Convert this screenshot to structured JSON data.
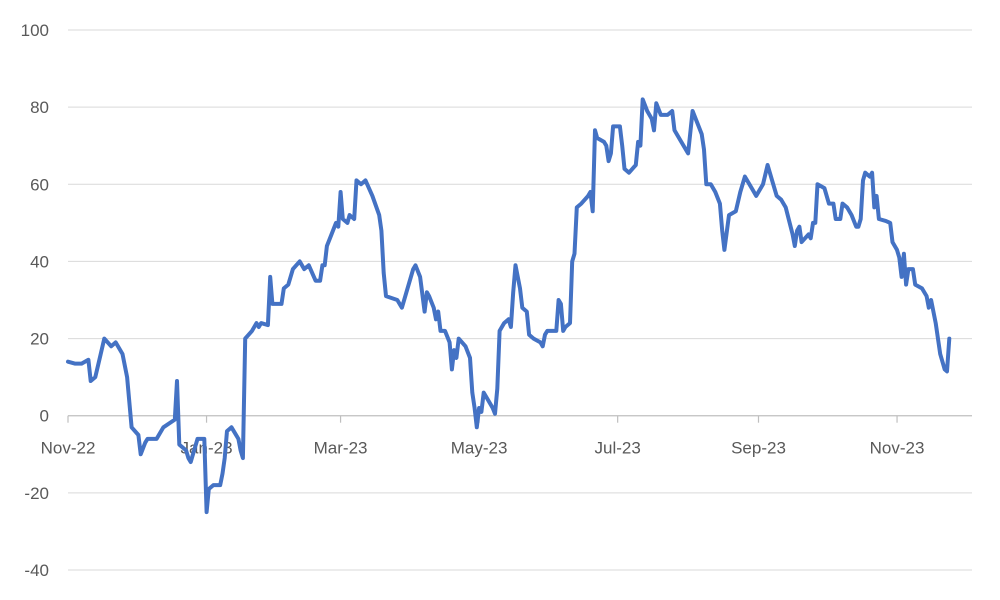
{
  "chart_data": {
    "type": "line",
    "title": "",
    "xlabel": "",
    "ylabel": "",
    "ylim": [
      -40,
      100
    ],
    "yticks": [
      -40,
      -20,
      0,
      20,
      40,
      60,
      80,
      100
    ],
    "xticks": [
      {
        "date": "2022-11-01",
        "label": "Nov-22"
      },
      {
        "date": "2023-01-01",
        "label": "Jan-23"
      },
      {
        "date": "2023-03-01",
        "label": "Mar-23"
      },
      {
        "date": "2023-05-01",
        "label": "May-23"
      },
      {
        "date": "2023-07-01",
        "label": "Jul-23"
      },
      {
        "date": "2023-09-01",
        "label": "Sep-23"
      },
      {
        "date": "2023-11-01",
        "label": "Nov-23"
      }
    ],
    "xlim": [
      "2022-11-01",
      "2023-12-04"
    ],
    "grid": true,
    "legend": "none",
    "line_color": "#4472c4",
    "series": [
      {
        "points": [
          [
            "2022-11-01",
            14
          ],
          [
            "2022-11-04",
            13.5
          ],
          [
            "2022-11-07",
            13.5
          ],
          [
            "2022-11-10",
            14.5
          ],
          [
            "2022-11-11",
            9
          ],
          [
            "2022-11-13",
            10
          ],
          [
            "2022-11-15",
            15
          ],
          [
            "2022-11-17",
            20
          ],
          [
            "2022-11-20",
            18
          ],
          [
            "2022-11-22",
            19
          ],
          [
            "2022-11-25",
            16
          ],
          [
            "2022-11-27",
            10
          ],
          [
            "2022-11-29",
            -3
          ],
          [
            "2022-12-02",
            -5
          ],
          [
            "2022-12-03",
            -10
          ],
          [
            "2022-12-05",
            -7
          ],
          [
            "2022-12-06",
            -6
          ],
          [
            "2022-12-10",
            -6
          ],
          [
            "2022-12-13",
            -3
          ],
          [
            "2022-12-18",
            -1
          ],
          [
            "2022-12-19",
            9
          ],
          [
            "2022-12-20",
            -7.5
          ],
          [
            "2022-12-23",
            -9
          ],
          [
            "2022-12-24",
            -11
          ],
          [
            "2022-12-25",
            -12
          ],
          [
            "2022-12-28",
            -6
          ],
          [
            "2022-12-31",
            -6
          ],
          [
            "2023-01-01",
            -25
          ],
          [
            "2023-01-02",
            -19
          ],
          [
            "2023-01-04",
            -18
          ],
          [
            "2023-01-07",
            -18
          ],
          [
            "2023-01-08",
            -15
          ],
          [
            "2023-01-09",
            -11
          ],
          [
            "2023-01-10",
            -4
          ],
          [
            "2023-01-12",
            -3
          ],
          [
            "2023-01-15",
            -6
          ],
          [
            "2023-01-16",
            -9
          ],
          [
            "2023-01-17",
            -11
          ],
          [
            "2023-01-18",
            20
          ],
          [
            "2023-01-21",
            22
          ],
          [
            "2023-01-23",
            24
          ],
          [
            "2023-01-24",
            23
          ],
          [
            "2023-01-25",
            24
          ],
          [
            "2023-01-28",
            23.5
          ],
          [
            "2023-01-29",
            36
          ],
          [
            "2023-01-30",
            29
          ],
          [
            "2023-02-03",
            29
          ],
          [
            "2023-02-04",
            33
          ],
          [
            "2023-02-06",
            34
          ],
          [
            "2023-02-08",
            38
          ],
          [
            "2023-02-11",
            40
          ],
          [
            "2023-02-13",
            38
          ],
          [
            "2023-02-15",
            39
          ],
          [
            "2023-02-18",
            35
          ],
          [
            "2023-02-20",
            35
          ],
          [
            "2023-02-21",
            39
          ],
          [
            "2023-02-22",
            39
          ],
          [
            "2023-02-23",
            44
          ],
          [
            "2023-02-25",
            47
          ],
          [
            "2023-02-27",
            50
          ],
          [
            "2023-02-28",
            49
          ],
          [
            "2023-03-01",
            58
          ],
          [
            "2023-03-02",
            51
          ],
          [
            "2023-03-04",
            50
          ],
          [
            "2023-03-05",
            52
          ],
          [
            "2023-03-07",
            51
          ],
          [
            "2023-03-08",
            61
          ],
          [
            "2023-03-10",
            60
          ],
          [
            "2023-03-12",
            61
          ],
          [
            "2023-03-15",
            57
          ],
          [
            "2023-03-18",
            52
          ],
          [
            "2023-03-19",
            48
          ],
          [
            "2023-03-20",
            37
          ],
          [
            "2023-03-21",
            31
          ],
          [
            "2023-03-26",
            30
          ],
          [
            "2023-03-28",
            28
          ],
          [
            "2023-03-30",
            32
          ],
          [
            "2023-04-02",
            38
          ],
          [
            "2023-04-03",
            39
          ],
          [
            "2023-04-05",
            36
          ],
          [
            "2023-04-07",
            27
          ],
          [
            "2023-04-08",
            32
          ],
          [
            "2023-04-09",
            31
          ],
          [
            "2023-04-11",
            28
          ],
          [
            "2023-04-12",
            25
          ],
          [
            "2023-04-13",
            27
          ],
          [
            "2023-04-14",
            22
          ],
          [
            "2023-04-16",
            22
          ],
          [
            "2023-04-18",
            19
          ],
          [
            "2023-04-19",
            12
          ],
          [
            "2023-04-20",
            17
          ],
          [
            "2023-04-21",
            15
          ],
          [
            "2023-04-22",
            20
          ],
          [
            "2023-04-25",
            18
          ],
          [
            "2023-04-27",
            15
          ],
          [
            "2023-04-28",
            6
          ],
          [
            "2023-04-29",
            2
          ],
          [
            "2023-04-30",
            -3
          ],
          [
            "2023-05-01",
            2
          ],
          [
            "2023-05-02",
            1
          ],
          [
            "2023-05-03",
            6
          ],
          [
            "2023-05-05",
            4
          ],
          [
            "2023-05-07",
            2
          ],
          [
            "2023-05-08",
            0.5
          ],
          [
            "2023-05-09",
            7
          ],
          [
            "2023-05-10",
            22
          ],
          [
            "2023-05-12",
            24
          ],
          [
            "2023-05-14",
            25
          ],
          [
            "2023-05-15",
            23
          ],
          [
            "2023-05-16",
            32
          ],
          [
            "2023-05-17",
            39
          ],
          [
            "2023-05-19",
            33
          ],
          [
            "2023-05-20",
            28
          ],
          [
            "2023-05-22",
            27
          ],
          [
            "2023-05-23",
            21
          ],
          [
            "2023-05-25",
            20
          ],
          [
            "2023-05-28",
            19
          ],
          [
            "2023-05-29",
            18
          ],
          [
            "2023-05-30",
            21
          ],
          [
            "2023-05-31",
            22
          ],
          [
            "2023-06-04",
            22
          ],
          [
            "2023-06-05",
            30
          ],
          [
            "2023-06-06",
            29
          ],
          [
            "2023-06-07",
            22
          ],
          [
            "2023-06-08",
            23
          ],
          [
            "2023-06-10",
            24
          ],
          [
            "2023-06-11",
            40
          ],
          [
            "2023-06-12",
            42
          ],
          [
            "2023-06-13",
            54
          ],
          [
            "2023-06-15",
            55
          ],
          [
            "2023-06-18",
            57
          ],
          [
            "2023-06-19",
            58
          ],
          [
            "2023-06-20",
            53
          ],
          [
            "2023-06-21",
            74
          ],
          [
            "2023-06-22",
            72
          ],
          [
            "2023-06-25",
            71
          ],
          [
            "2023-06-26",
            70
          ],
          [
            "2023-06-27",
            66
          ],
          [
            "2023-06-28",
            68
          ],
          [
            "2023-06-29",
            75
          ],
          [
            "2023-07-02",
            75
          ],
          [
            "2023-07-03",
            70
          ],
          [
            "2023-07-04",
            64
          ],
          [
            "2023-07-06",
            63
          ],
          [
            "2023-07-09",
            65
          ],
          [
            "2023-07-10",
            71
          ],
          [
            "2023-07-11",
            70
          ],
          [
            "2023-07-12",
            82
          ],
          [
            "2023-07-14",
            79
          ],
          [
            "2023-07-16",
            77
          ],
          [
            "2023-07-17",
            74
          ],
          [
            "2023-07-18",
            81
          ],
          [
            "2023-07-20",
            78
          ],
          [
            "2023-07-23",
            78
          ],
          [
            "2023-07-25",
            79
          ],
          [
            "2023-07-26",
            74
          ],
          [
            "2023-07-29",
            71
          ],
          [
            "2023-08-01",
            68
          ],
          [
            "2023-08-03",
            79
          ],
          [
            "2023-08-05",
            76
          ],
          [
            "2023-08-07",
            73
          ],
          [
            "2023-08-08",
            69
          ],
          [
            "2023-08-09",
            60
          ],
          [
            "2023-08-11",
            60
          ],
          [
            "2023-08-13",
            58
          ],
          [
            "2023-08-15",
            55
          ],
          [
            "2023-08-16",
            48
          ],
          [
            "2023-08-17",
            43
          ],
          [
            "2023-08-19",
            52
          ],
          [
            "2023-08-22",
            53
          ],
          [
            "2023-08-24",
            58
          ],
          [
            "2023-08-26",
            62
          ],
          [
            "2023-08-29",
            59
          ],
          [
            "2023-08-31",
            57
          ],
          [
            "2023-09-03",
            60
          ],
          [
            "2023-09-05",
            65
          ],
          [
            "2023-09-07",
            61
          ],
          [
            "2023-09-09",
            57
          ],
          [
            "2023-09-11",
            56
          ],
          [
            "2023-09-13",
            54
          ],
          [
            "2023-09-16",
            47
          ],
          [
            "2023-09-17",
            44
          ],
          [
            "2023-09-18",
            48
          ],
          [
            "2023-09-19",
            49
          ],
          [
            "2023-09-20",
            45
          ],
          [
            "2023-09-23",
            47
          ],
          [
            "2023-09-24",
            46
          ],
          [
            "2023-09-25",
            50
          ],
          [
            "2023-09-26",
            50
          ],
          [
            "2023-09-27",
            60
          ],
          [
            "2023-09-30",
            59
          ],
          [
            "2023-10-02",
            55
          ],
          [
            "2023-10-04",
            55
          ],
          [
            "2023-10-05",
            51
          ],
          [
            "2023-10-07",
            51
          ],
          [
            "2023-10-08",
            55
          ],
          [
            "2023-10-10",
            54
          ],
          [
            "2023-10-12",
            52
          ],
          [
            "2023-10-14",
            49
          ],
          [
            "2023-10-15",
            49
          ],
          [
            "2023-10-16",
            51
          ],
          [
            "2023-10-17",
            61
          ],
          [
            "2023-10-18",
            63
          ],
          [
            "2023-10-20",
            62
          ],
          [
            "2023-10-21",
            63
          ],
          [
            "2023-10-22",
            54
          ],
          [
            "2023-10-23",
            57
          ],
          [
            "2023-10-24",
            51
          ],
          [
            "2023-10-27",
            50.5
          ],
          [
            "2023-10-29",
            50
          ],
          [
            "2023-10-30",
            45
          ],
          [
            "2023-11-01",
            43
          ],
          [
            "2023-11-02",
            41
          ],
          [
            "2023-11-03",
            36
          ],
          [
            "2023-11-04",
            42
          ],
          [
            "2023-11-05",
            34
          ],
          [
            "2023-11-06",
            38
          ],
          [
            "2023-11-08",
            38
          ],
          [
            "2023-11-09",
            34
          ],
          [
            "2023-11-12",
            33
          ],
          [
            "2023-11-14",
            31
          ],
          [
            "2023-11-15",
            28
          ],
          [
            "2023-11-16",
            30
          ],
          [
            "2023-11-18",
            24
          ],
          [
            "2023-11-20",
            16
          ],
          [
            "2023-11-22",
            12
          ],
          [
            "2023-11-23",
            11.5
          ],
          [
            "2023-11-24",
            20
          ]
        ]
      }
    ]
  }
}
